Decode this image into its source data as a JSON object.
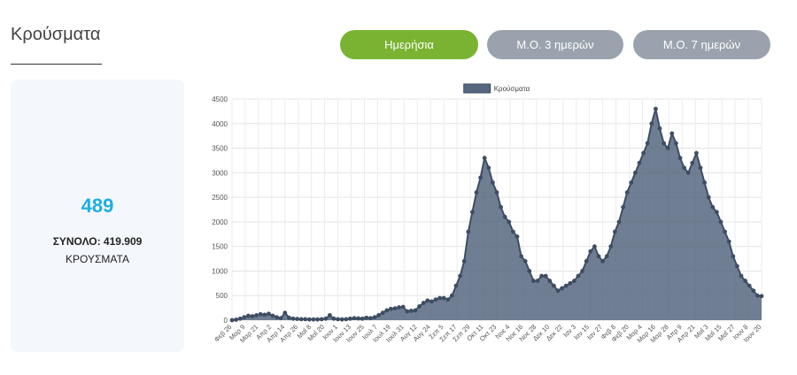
{
  "page": {
    "title": "Κρούσματα"
  },
  "buttons": {
    "daily": "Ημερήσια",
    "avg3": "Μ.Ο. 3 ημερών",
    "avg7": "Μ.Ο. 7 ημερών"
  },
  "stats": {
    "today": "489",
    "total": "ΣΥΝΟΛΟ: 419.909",
    "caption": "ΚΡΟΥΣΜΑΤΑ"
  },
  "colors": {
    "active_button": "#7ab332",
    "inactive_button": "#9aa3ad",
    "stat_value": "#1eaee2",
    "series_line": "#3e4d63",
    "series_fill": "#56677f"
  },
  "chart_data": {
    "type": "area",
    "legend": "Κρούσματα",
    "legend_position": "top-center",
    "grid": true,
    "ylim": [
      0,
      4500
    ],
    "yticks": [
      0,
      500,
      1000,
      1500,
      2000,
      2500,
      3000,
      3500,
      4000,
      4500
    ],
    "xticks": [
      "Φεβ 26",
      "Μαρ 9",
      "Μαρ 21",
      "Απρ 2",
      "Απρ 14",
      "Απρ 26",
      "Μαΐ 8",
      "Μαΐ 20",
      "Ιουν 1",
      "Ιουν 13",
      "Ιουν 25",
      "Ιουλ 7",
      "Ιουλ 19",
      "Ιουλ 31",
      "Αυγ 12",
      "Αυγ 24",
      "Σεπ 5",
      "Σεπ 17",
      "Σεπ 29",
      "Οκτ 11",
      "Οκτ 23",
      "Νοε 4",
      "Νοε 16",
      "Νοε 28",
      "Δεκ 10",
      "Δεκ 22",
      "Ιαν 3",
      "Ιαν 15",
      "Ιαν 27",
      "Φεβ 8",
      "Φεβ 20",
      "Μαρ 4",
      "Μαρ 16",
      "Μαρ 28",
      "Απρ 9",
      "Απρ 21",
      "Μαΐ 3",
      "Μαΐ 15",
      "Μαΐ 27",
      "Ιουν 8",
      "Ιουν 20"
    ],
    "series": [
      {
        "name": "Κρούσματα",
        "values": [
          0,
          10,
          30,
          60,
          90,
          80,
          100,
          120,
          110,
          130,
          90,
          60,
          40,
          150,
          50,
          30,
          25,
          20,
          20,
          15,
          15,
          15,
          20,
          30,
          100,
          30,
          20,
          15,
          20,
          30,
          40,
          35,
          30,
          50,
          40,
          60,
          100,
          150,
          200,
          230,
          240,
          260,
          270,
          180,
          190,
          200,
          280,
          350,
          400,
          380,
          420,
          450,
          450,
          420,
          500,
          700,
          900,
          1200,
          1800,
          2200,
          2600,
          2900,
          3300,
          3100,
          2800,
          2600,
          2300,
          2100,
          2000,
          1800,
          1700,
          1300,
          1200,
          1000,
          800,
          800,
          900,
          900,
          800,
          700,
          600,
          650,
          700,
          750,
          800,
          900,
          1000,
          1200,
          1400,
          1500,
          1300,
          1200,
          1300,
          1500,
          1800,
          2000,
          2300,
          2600,
          2800,
          3000,
          3200,
          3400,
          3600,
          4000,
          4300,
          3900,
          3600,
          3500,
          3800,
          3600,
          3300,
          3100,
          3000,
          3200,
          3400,
          3100,
          2800,
          2500,
          2300,
          2200,
          2000,
          1800,
          1600,
          1300,
          1100,
          900,
          800,
          700,
          600,
          500,
          489
        ]
      }
    ]
  }
}
